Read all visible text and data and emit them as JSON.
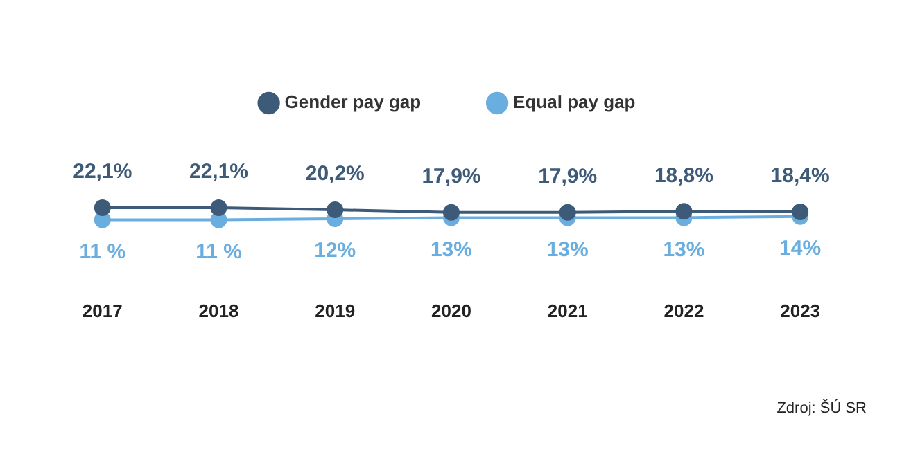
{
  "chart_data": {
    "type": "line",
    "categories": [
      "2017",
      "2018",
      "2019",
      "2020",
      "2021",
      "2022",
      "2023"
    ],
    "series": [
      {
        "name": "Gender pay gap",
        "color": "#3d5a78",
        "values": [
          22.1,
          22.1,
          20.2,
          17.9,
          17.9,
          18.8,
          18.4
        ],
        "value_labels": [
          "22,1%",
          "22,1%",
          "20,2%",
          "17,9%",
          "17,9%",
          "18,8%",
          "18,4%"
        ]
      },
      {
        "name": "Equal pay gap",
        "color": "#6aaee0",
        "values": [
          11,
          11,
          12,
          13,
          13,
          13,
          14
        ],
        "value_labels": [
          "11 %",
          "11 %",
          "12%",
          "13%",
          "13%",
          "13%",
          "14%"
        ]
      }
    ],
    "marker": "circle",
    "line_style": "solid",
    "grid": false,
    "legend": "top",
    "tick_labels": "x",
    "annotations": [
      "Zdroj: ŠÚ SR"
    ]
  }
}
